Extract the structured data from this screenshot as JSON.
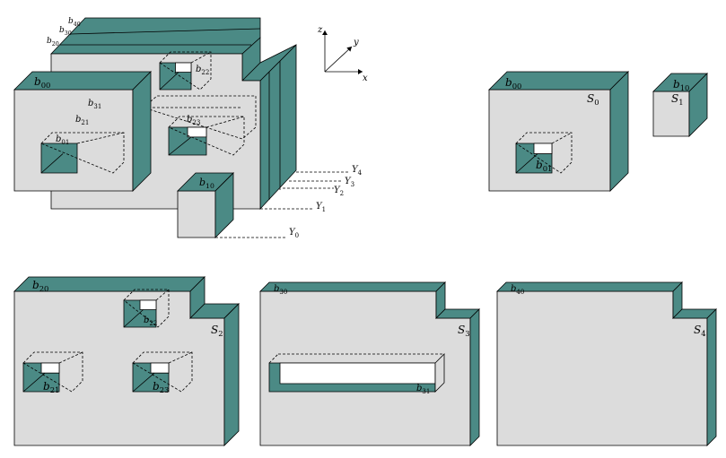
{
  "labels": [
    {
      "base": "b",
      "sub": "40"
    },
    {
      "base": "b",
      "sub": "30"
    },
    {
      "base": "b",
      "sub": "20"
    },
    {
      "base": "b",
      "sub": "22"
    },
    {
      "base": "b",
      "sub": "00"
    },
    {
      "base": "b",
      "sub": "31"
    },
    {
      "base": "b",
      "sub": "21"
    },
    {
      "base": "b",
      "sub": "23"
    },
    {
      "base": "b",
      "sub": "01"
    },
    {
      "base": "b",
      "sub": "10"
    },
    {
      "base": "Y",
      "sub": "4"
    },
    {
      "base": "Y",
      "sub": "3"
    },
    {
      "base": "Y",
      "sub": "2"
    },
    {
      "base": "Y",
      "sub": "1"
    },
    {
      "base": "Y",
      "sub": "0"
    },
    {
      "base": "z"
    },
    {
      "base": "y"
    },
    {
      "base": "x"
    },
    {
      "base": "b",
      "sub": "00"
    },
    {
      "base": "S",
      "sub": "0"
    },
    {
      "base": "b",
      "sub": "01"
    },
    {
      "base": "b",
      "sub": "10"
    },
    {
      "base": "S",
      "sub": "1"
    },
    {
      "base": "b",
      "sub": "20"
    },
    {
      "base": "b",
      "sub": "22"
    },
    {
      "base": "S",
      "sub": "2"
    },
    {
      "base": "b",
      "sub": "21"
    },
    {
      "base": "b",
      "sub": "23"
    },
    {
      "base": "b",
      "sub": "30"
    },
    {
      "base": "S",
      "sub": "3"
    },
    {
      "base": "b",
      "sub": "31"
    },
    {
      "base": "b",
      "sub": "40"
    },
    {
      "base": "S",
      "sub": "4"
    }
  ]
}
